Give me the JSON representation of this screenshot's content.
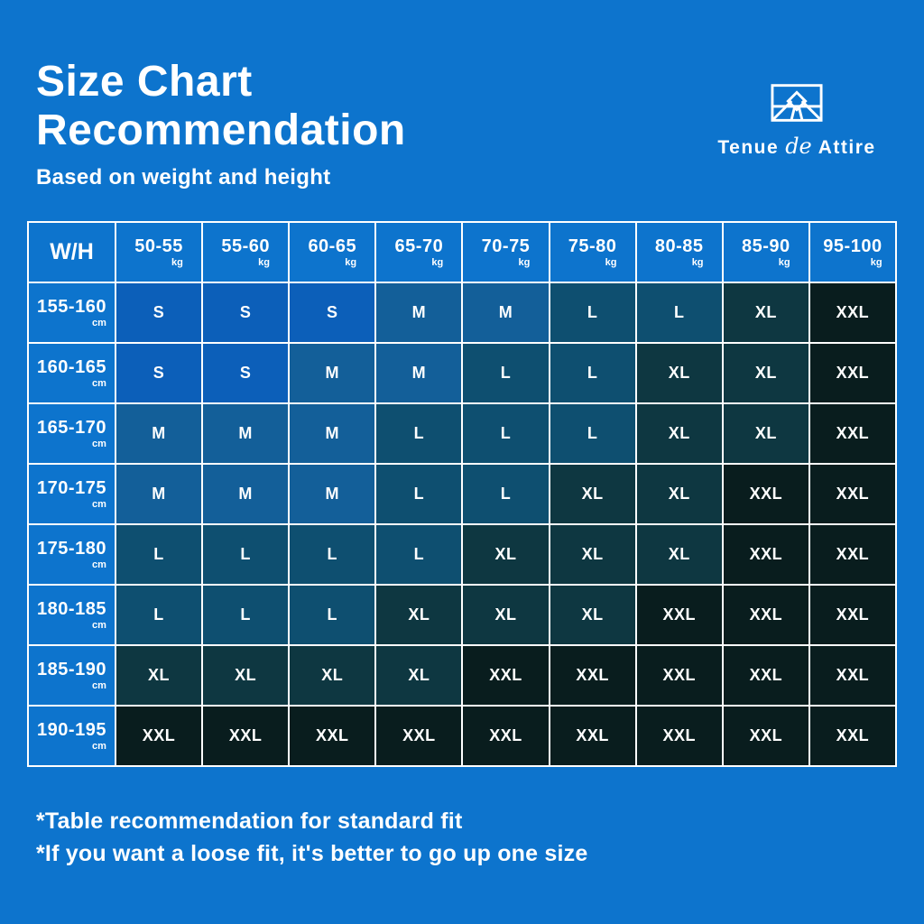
{
  "page": {
    "background_color": "#0d74cd",
    "text_color": "#ffffff"
  },
  "header": {
    "title_line1": "Size Chart",
    "title_line2": "Recommendation",
    "subtitle": "Based on weight and height"
  },
  "brand": {
    "word1": "Tenue",
    "word2": "de",
    "word3": "Attire",
    "logo_icon": "mountain-in-frame-icon"
  },
  "chart_data": {
    "type": "table",
    "title": "Size Chart Recommendation",
    "subtitle": "Based on weight and height",
    "corner_label": "W/H",
    "weight_unit": "kg",
    "height_unit": "cm",
    "weight_columns": [
      "50-55",
      "55-60",
      "60-65",
      "65-70",
      "70-75",
      "75-80",
      "80-85",
      "85-90",
      "95-100"
    ],
    "height_rows": [
      "155-160",
      "160-165",
      "165-170",
      "170-175",
      "175-180",
      "180-185",
      "185-190",
      "190-195"
    ],
    "sizes": [
      [
        "S",
        "S",
        "S",
        "M",
        "M",
        "L",
        "L",
        "XL",
        "XXL"
      ],
      [
        "S",
        "S",
        "M",
        "M",
        "L",
        "L",
        "XL",
        "XL",
        "XXL"
      ],
      [
        "M",
        "M",
        "M",
        "L",
        "L",
        "L",
        "XL",
        "XL",
        "XXL"
      ],
      [
        "M",
        "M",
        "M",
        "L",
        "L",
        "XL",
        "XL",
        "XXL",
        "XXL"
      ],
      [
        "L",
        "L",
        "L",
        "L",
        "XL",
        "XL",
        "XL",
        "XXL",
        "XXL"
      ],
      [
        "L",
        "L",
        "L",
        "XL",
        "XL",
        "XL",
        "XXL",
        "XXL",
        "XXL"
      ],
      [
        "XL",
        "XL",
        "XL",
        "XL",
        "XXL",
        "XXL",
        "XXL",
        "XXL",
        "XXL"
      ],
      [
        "XXL",
        "XXL",
        "XXL",
        "XXL",
        "XXL",
        "XXL",
        "XXL",
        "XXL",
        "XXL"
      ]
    ],
    "size_colors": {
      "S": "#0c5fb9",
      "M": "#135f99",
      "L": "#0e4f70",
      "XL": "#0e3741",
      "XXL": "#091d1e"
    },
    "header_cell_color": "#0d74cd",
    "grid_line_color": "#ffffff"
  },
  "footnotes": {
    "line1": "*Table recommendation for standard fit",
    "line2": "*If you want a loose fit, it's better to go up one size"
  }
}
